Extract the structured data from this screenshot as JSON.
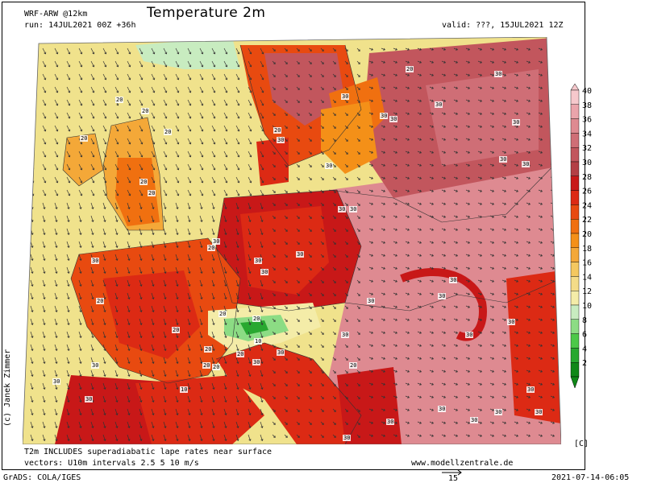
{
  "header": {
    "model": "WRF-ARW @12km",
    "run": "run: 14JUL2021 00Z +36h",
    "title": "Temperature 2m",
    "valid": "valid: ???, 15JUL2021 12Z"
  },
  "footer": {
    "note1": "T2m INCLUDES superadiabatic lape rates near surface",
    "note2": "vectors: U10m intervals 2.5 5 10 m/s",
    "website": "www.modellzentrale.de",
    "unit": "[C]",
    "grads": "GrADS: COLA/IGES",
    "vector_ref": "15",
    "timestamp": "2021-07-14-06:05"
  },
  "credit": "(c) Janek Zimmer",
  "colorbar": {
    "labels": [
      "40",
      "38",
      "36",
      "34",
      "32",
      "30",
      "28",
      "26",
      "24",
      "22",
      "20",
      "18",
      "16",
      "14",
      "12",
      "10",
      "8",
      "6",
      "4",
      "2"
    ],
    "colors": [
      "#f6c8cc",
      "#eaa4ab",
      "#de8a91",
      "#cf6e76",
      "#c2565d",
      "#b33f45",
      "#c81818",
      "#dc2a14",
      "#e84a10",
      "#f07010",
      "#f49018",
      "#f4a838",
      "#f4c860",
      "#f4dc88",
      "#f4eca8",
      "#c8ecc0",
      "#8cdc84",
      "#4cc848",
      "#28a830",
      "#108818"
    ]
  },
  "map_labels": [
    "20",
    "20",
    "20",
    "20",
    "20",
    "30",
    "30",
    "30",
    "30",
    "30",
    "30",
    "30",
    "30",
    "30",
    "30",
    "30",
    "30",
    "30",
    "30",
    "30",
    "30",
    "30",
    "30",
    "30",
    "30",
    "30",
    "30",
    "30",
    "30",
    "30",
    "30",
    "30",
    "30",
    "30",
    "30",
    "30",
    "30",
    "30",
    "30",
    "30",
    "20",
    "20",
    "20",
    "20",
    "20",
    "20",
    "20",
    "20",
    "20",
    "20",
    "20",
    "20",
    "10",
    "10",
    "20"
  ]
}
